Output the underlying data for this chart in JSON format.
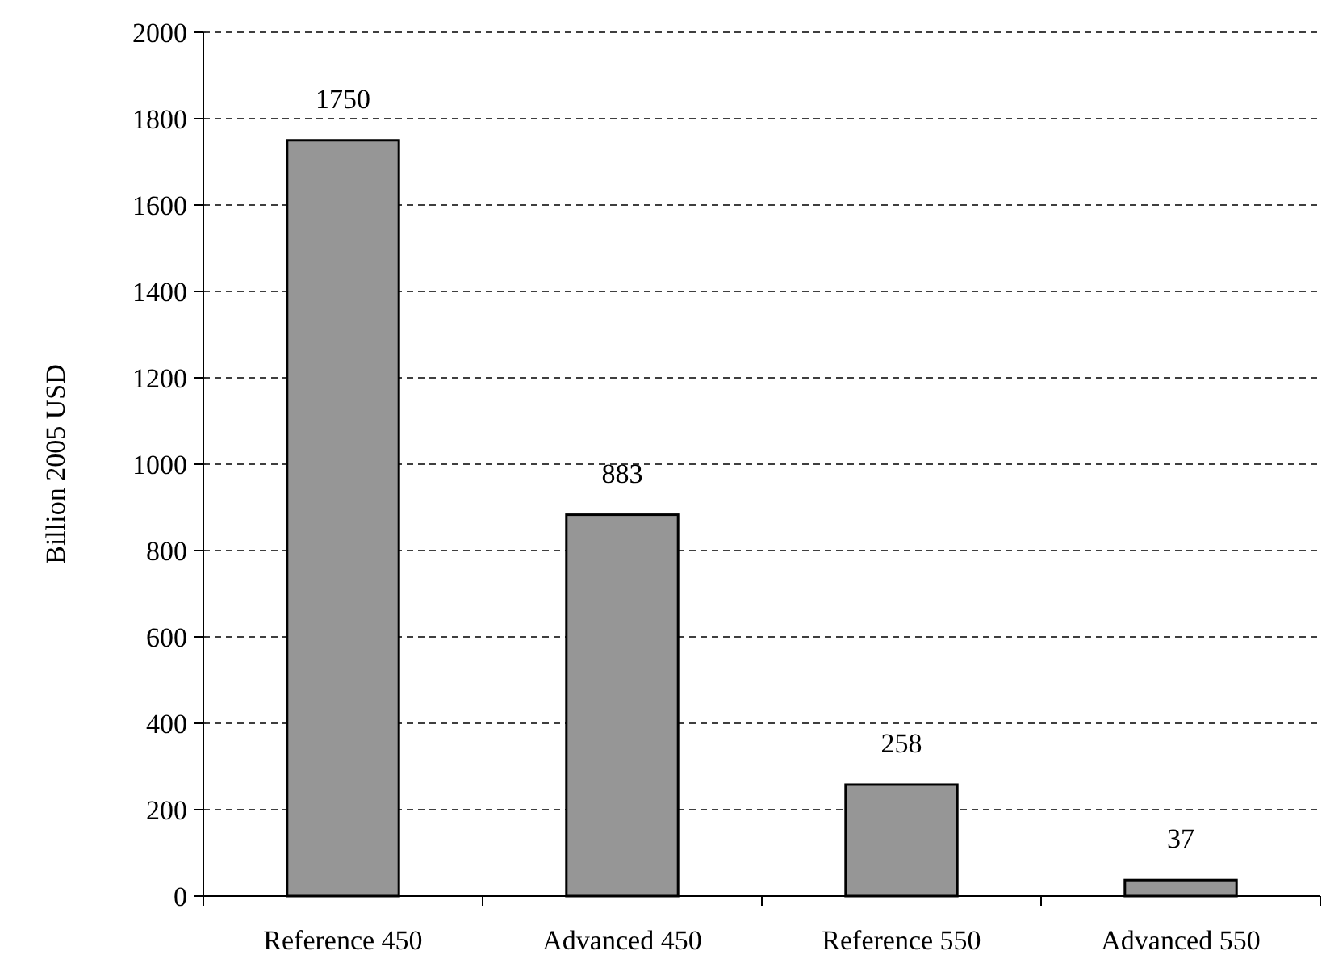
{
  "chart_data": {
    "type": "bar",
    "ylabel": "Billion 2005 USD",
    "categories": [
      "Reference 450",
      "Advanced 450",
      "Reference 550",
      "Advanced 550"
    ],
    "values": [
      1750,
      883,
      258,
      37
    ],
    "color": "#969696",
    "ylim": [
      0,
      2000
    ],
    "yticks": [
      0,
      200,
      400,
      600,
      800,
      1000,
      1200,
      1400,
      1600,
      1800,
      2000
    ],
    "grid": "y",
    "data_labels": true
  }
}
